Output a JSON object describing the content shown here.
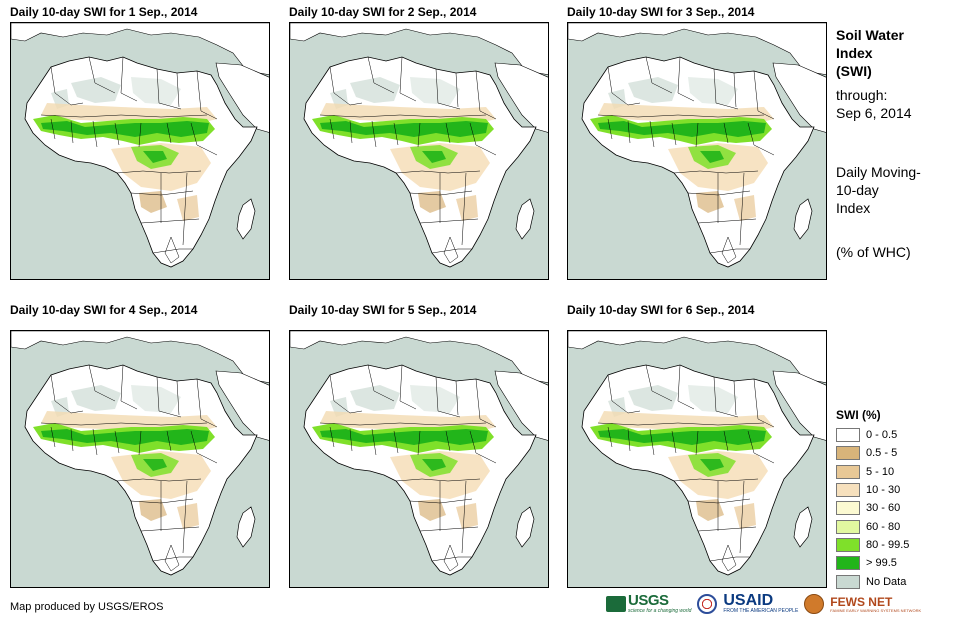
{
  "panels": [
    {
      "title": "Daily 10-day  SWI for 1  Sep., 2014"
    },
    {
      "title": "Daily 10-day  SWI for 2  Sep., 2014"
    },
    {
      "title": "Daily 10-day  SWI for 3  Sep., 2014"
    },
    {
      "title": "Daily 10-day  SWI for 4  Sep., 2014"
    },
    {
      "title": "Daily 10-day  SWI for 5  Sep., 2014"
    },
    {
      "title": "Daily 10-day  SWI for 6  Sep., 2014"
    }
  ],
  "sidebar": {
    "title_lines": [
      "Soil Water",
      "Index",
      "(SWI)"
    ],
    "through_label": "through:",
    "through_date": "Sep 6, 2014",
    "description_lines": [
      "Daily Moving-",
      "10-day",
      "Index"
    ],
    "units": "(% of WHC)"
  },
  "legend": {
    "title": "SWI (%)",
    "items": [
      {
        "label": "0 - 0.5",
        "color": "#ffffff"
      },
      {
        "label": "0.5 - 5",
        "color": "#d8b47a"
      },
      {
        "label": "5 - 10",
        "color": "#e8c896"
      },
      {
        "label": "10 - 30",
        "color": "#f6e0bd"
      },
      {
        "label": "30 - 60",
        "color": "#fcfad2"
      },
      {
        "label": "60 - 80",
        "color": "#e2f8a0"
      },
      {
        "label": "80 - 99.5",
        "color": "#7fe02a"
      },
      {
        "label": "> 99.5",
        "color": "#22b51a"
      },
      {
        "label": "No Data",
        "color": "#c9d9d2"
      }
    ]
  },
  "footer": {
    "credit": "Map produced by USGS/EROS",
    "logos": {
      "usgs": "USGS",
      "usgs_tagline": "science for a changing world",
      "usaid": "USAID",
      "usaid_tagline": "FROM THE AMERICAN PEOPLE",
      "fews": "FEWS NET",
      "fews_tagline": "FAMINE EARLY WARNING SYSTEMS NETWORK"
    }
  },
  "colors": {
    "ocean": "#c9d9d2",
    "land": "#ffffff",
    "border": "#000000",
    "wet_high": "#22b51a",
    "wet_mid": "#7fe02a",
    "dry_low": "#d8b47a"
  }
}
